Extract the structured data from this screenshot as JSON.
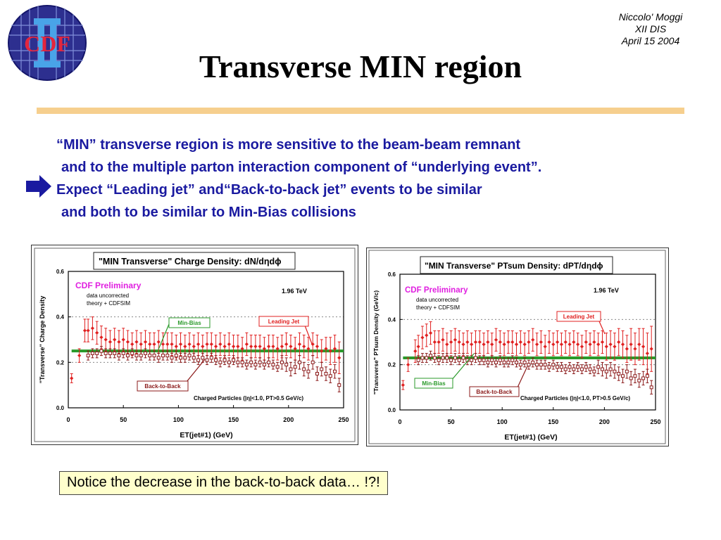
{
  "header": {
    "logo_text": "CDF",
    "author": "Niccolo' Moggi",
    "conference": "XII DIS",
    "date": "April 15 2004",
    "title": "Transverse MIN region"
  },
  "bullets": [
    "“MIN” transverse region is more sensitive to the beam-beam remnant",
    "and to the multiple parton interaction component of “underlying event”.",
    "Expect  “Leading jet” and“Back-to-back jet” events to be similar",
    "and both to be similar to Min-Bias collisions"
  ],
  "notice": "Notice the decrease in the back-to-back data… !?!",
  "colors": {
    "title_blue": "#1a1aa0",
    "leading": "#e02020",
    "back": "#8b1a1a",
    "minbias": "#2a9a2a",
    "cdf_pink": "#e020e0",
    "rule": "#f6cf8e",
    "notice_bg": "#ffffcc"
  },
  "chart_data": [
    {
      "type": "scatter",
      "title": "\"MIN Transverse\" Charge Density: dN/dηdϕ",
      "cdf_label": "CDF Preliminary",
      "note1": "data uncorrected",
      "note2": "theory + CDFSIM",
      "energy": "1.96 TeV",
      "xlabel": "ET(jet#1)   (GeV)",
      "ylabel": "\"Transverse\" Charge Density",
      "cuts": "Charged Particles (|η|<1.0, PT>0.5 GeV/c)",
      "xlim": [
        0,
        250
      ],
      "ylim": [
        0,
        0.6
      ],
      "xticks": [
        "0",
        "50",
        "100",
        "150",
        "200",
        "250"
      ],
      "yticks": [
        "0.0",
        "0.2",
        "0.4",
        "0.6"
      ],
      "minbias_level": 0.25,
      "labels": {
        "minbias": "Min-Bias",
        "leading": "Leading Jet",
        "back": "Back-to-Back"
      },
      "series": [
        {
          "name": "Leading Jet",
          "x": [
            3,
            10,
            15,
            18,
            22,
            26,
            30,
            34,
            38,
            42,
            46,
            50,
            54,
            58,
            62,
            66,
            70,
            74,
            78,
            82,
            86,
            90,
            94,
            98,
            102,
            106,
            110,
            114,
            118,
            122,
            126,
            130,
            134,
            138,
            142,
            146,
            150,
            154,
            158,
            162,
            166,
            170,
            174,
            178,
            182,
            186,
            190,
            194,
            198,
            202,
            206,
            210,
            214,
            218,
            222,
            226,
            230,
            234,
            238,
            242,
            246
          ],
          "y": [
            0.13,
            0.23,
            0.34,
            0.34,
            0.35,
            0.33,
            0.31,
            0.3,
            0.29,
            0.3,
            0.29,
            0.3,
            0.29,
            0.28,
            0.29,
            0.28,
            0.29,
            0.28,
            0.28,
            0.29,
            0.28,
            0.28,
            0.28,
            0.27,
            0.28,
            0.27,
            0.28,
            0.27,
            0.28,
            0.27,
            0.28,
            0.28,
            0.27,
            0.28,
            0.27,
            0.28,
            0.27,
            0.27,
            0.26,
            0.28,
            0.27,
            0.27,
            0.27,
            0.26,
            0.27,
            0.27,
            0.26,
            0.27,
            0.28,
            0.27,
            0.26,
            0.28,
            0.27,
            0.26,
            0.28,
            0.27,
            0.25,
            0.26,
            0.25,
            0.26,
            0.22
          ],
          "err": [
            0.02,
            0.03,
            0.05,
            0.05,
            0.05,
            0.05,
            0.05,
            0.05,
            0.05,
            0.05,
            0.05,
            0.05,
            0.05,
            0.05,
            0.05,
            0.05,
            0.05,
            0.05,
            0.05,
            0.05,
            0.05,
            0.05,
            0.05,
            0.05,
            0.05,
            0.05,
            0.05,
            0.05,
            0.05,
            0.05,
            0.05,
            0.05,
            0.05,
            0.05,
            0.05,
            0.05,
            0.05,
            0.05,
            0.05,
            0.05,
            0.05,
            0.05,
            0.05,
            0.05,
            0.05,
            0.05,
            0.05,
            0.05,
            0.05,
            0.05,
            0.05,
            0.05,
            0.05,
            0.05,
            0.05,
            0.05,
            0.05,
            0.05,
            0.06,
            0.06,
            0.07
          ]
        },
        {
          "name": "Back-to-Back",
          "x": [
            18,
            22,
            26,
            30,
            34,
            38,
            42,
            46,
            50,
            54,
            58,
            62,
            66,
            70,
            74,
            78,
            82,
            86,
            90,
            94,
            98,
            102,
            106,
            110,
            114,
            118,
            122,
            126,
            130,
            134,
            138,
            142,
            146,
            150,
            154,
            158,
            162,
            166,
            170,
            174,
            178,
            182,
            186,
            190,
            194,
            198,
            202,
            206,
            210,
            214,
            218,
            222,
            226,
            230,
            234,
            238,
            242,
            246
          ],
          "y": [
            0.23,
            0.24,
            0.24,
            0.25,
            0.24,
            0.24,
            0.24,
            0.23,
            0.24,
            0.23,
            0.24,
            0.23,
            0.23,
            0.24,
            0.23,
            0.23,
            0.22,
            0.23,
            0.23,
            0.22,
            0.23,
            0.22,
            0.22,
            0.23,
            0.22,
            0.21,
            0.22,
            0.21,
            0.22,
            0.21,
            0.2,
            0.21,
            0.2,
            0.21,
            0.2,
            0.2,
            0.19,
            0.2,
            0.19,
            0.2,
            0.19,
            0.2,
            0.19,
            0.18,
            0.2,
            0.19,
            0.17,
            0.18,
            0.2,
            0.17,
            0.16,
            0.2,
            0.15,
            0.17,
            0.15,
            0.14,
            0.16,
            0.1
          ],
          "err": [
            0.02,
            0.02,
            0.02,
            0.02,
            0.02,
            0.02,
            0.02,
            0.02,
            0.02,
            0.02,
            0.02,
            0.02,
            0.02,
            0.02,
            0.02,
            0.02,
            0.02,
            0.02,
            0.02,
            0.02,
            0.02,
            0.02,
            0.02,
            0.02,
            0.02,
            0.02,
            0.02,
            0.02,
            0.02,
            0.02,
            0.02,
            0.02,
            0.02,
            0.02,
            0.02,
            0.02,
            0.02,
            0.02,
            0.02,
            0.02,
            0.02,
            0.02,
            0.02,
            0.02,
            0.03,
            0.03,
            0.03,
            0.03,
            0.03,
            0.03,
            0.03,
            0.03,
            0.03,
            0.03,
            0.03,
            0.03,
            0.03,
            0.03
          ]
        }
      ]
    },
    {
      "type": "scatter",
      "title": "\"MIN Transverse\" PTsum Density: dPT/dηdϕ",
      "cdf_label": "CDF Preliminary",
      "note1": "data uncorrected",
      "note2": "theory + CDFSIM",
      "energy": "1.96 TeV",
      "xlabel": "ET(jet#1)   (GeV)",
      "ylabel": "\"Transverse\" PTsum Density (GeV/c)",
      "cuts": "Charged Particles (|η|<1.0, PT>0.5 GeV/c)",
      "xlim": [
        0,
        250
      ],
      "ylim": [
        0,
        0.6
      ],
      "xticks": [
        "0",
        "50",
        "100",
        "150",
        "200",
        "250"
      ],
      "yticks": [
        "0.0",
        "0.2",
        "0.4",
        "0.6"
      ],
      "minbias_level": 0.23,
      "labels": {
        "minbias": "Min-Bias",
        "leading": "Leading Jet",
        "back": "Back-to-Back"
      },
      "series": [
        {
          "name": "Leading Jet",
          "x": [
            3,
            8,
            15,
            18,
            22,
            26,
            30,
            34,
            38,
            42,
            46,
            50,
            54,
            58,
            62,
            66,
            70,
            74,
            78,
            82,
            86,
            90,
            94,
            98,
            102,
            106,
            110,
            114,
            118,
            122,
            126,
            130,
            134,
            138,
            142,
            146,
            150,
            154,
            158,
            162,
            166,
            170,
            174,
            178,
            182,
            186,
            190,
            194,
            198,
            202,
            206,
            210,
            214,
            218,
            222,
            226,
            230,
            234,
            238,
            242,
            246
          ],
          "y": [
            0.11,
            0.2,
            0.26,
            0.28,
            0.32,
            0.33,
            0.34,
            0.3,
            0.3,
            0.31,
            0.29,
            0.3,
            0.31,
            0.3,
            0.29,
            0.3,
            0.29,
            0.3,
            0.3,
            0.29,
            0.3,
            0.29,
            0.31,
            0.3,
            0.29,
            0.3,
            0.3,
            0.29,
            0.3,
            0.29,
            0.3,
            0.31,
            0.29,
            0.3,
            0.28,
            0.3,
            0.29,
            0.3,
            0.29,
            0.3,
            0.29,
            0.3,
            0.29,
            0.28,
            0.3,
            0.29,
            0.3,
            0.29,
            0.3,
            0.28,
            0.29,
            0.28,
            0.3,
            0.29,
            0.27,
            0.29,
            0.27,
            0.29,
            0.28,
            0.25,
            0.27
          ],
          "err": [
            0.02,
            0.03,
            0.05,
            0.05,
            0.05,
            0.05,
            0.05,
            0.05,
            0.05,
            0.05,
            0.05,
            0.05,
            0.05,
            0.05,
            0.05,
            0.05,
            0.05,
            0.05,
            0.05,
            0.05,
            0.05,
            0.05,
            0.05,
            0.05,
            0.05,
            0.05,
            0.05,
            0.05,
            0.05,
            0.05,
            0.05,
            0.05,
            0.05,
            0.05,
            0.05,
            0.05,
            0.05,
            0.05,
            0.05,
            0.05,
            0.05,
            0.05,
            0.05,
            0.05,
            0.05,
            0.05,
            0.05,
            0.05,
            0.05,
            0.06,
            0.06,
            0.06,
            0.06,
            0.06,
            0.06,
            0.07,
            0.07,
            0.07,
            0.08,
            0.09,
            0.1
          ]
        },
        {
          "name": "Back-to-Back",
          "x": [
            18,
            22,
            26,
            30,
            34,
            38,
            42,
            46,
            50,
            54,
            58,
            62,
            66,
            70,
            74,
            78,
            82,
            86,
            90,
            94,
            98,
            102,
            106,
            110,
            114,
            118,
            122,
            126,
            130,
            134,
            138,
            142,
            146,
            150,
            154,
            158,
            162,
            166,
            170,
            174,
            178,
            182,
            186,
            190,
            194,
            198,
            202,
            206,
            210,
            214,
            218,
            222,
            226,
            230,
            234,
            238,
            242,
            246
          ],
          "y": [
            0.22,
            0.23,
            0.23,
            0.24,
            0.23,
            0.22,
            0.23,
            0.23,
            0.22,
            0.23,
            0.22,
            0.23,
            0.22,
            0.22,
            0.23,
            0.22,
            0.22,
            0.21,
            0.22,
            0.21,
            0.22,
            0.21,
            0.21,
            0.22,
            0.21,
            0.2,
            0.21,
            0.2,
            0.21,
            0.2,
            0.2,
            0.2,
            0.19,
            0.2,
            0.19,
            0.19,
            0.18,
            0.19,
            0.18,
            0.19,
            0.18,
            0.19,
            0.18,
            0.17,
            0.19,
            0.18,
            0.17,
            0.18,
            0.17,
            0.16,
            0.15,
            0.17,
            0.14,
            0.15,
            0.13,
            0.14,
            0.15,
            0.1
          ],
          "err": [
            0.02,
            0.02,
            0.02,
            0.02,
            0.02,
            0.02,
            0.02,
            0.02,
            0.02,
            0.02,
            0.02,
            0.02,
            0.02,
            0.02,
            0.02,
            0.02,
            0.02,
            0.02,
            0.02,
            0.02,
            0.02,
            0.02,
            0.02,
            0.02,
            0.02,
            0.02,
            0.02,
            0.02,
            0.02,
            0.02,
            0.02,
            0.02,
            0.02,
            0.02,
            0.02,
            0.02,
            0.02,
            0.02,
            0.02,
            0.02,
            0.02,
            0.02,
            0.02,
            0.02,
            0.03,
            0.03,
            0.03,
            0.03,
            0.03,
            0.03,
            0.03,
            0.03,
            0.03,
            0.03,
            0.03,
            0.03,
            0.03,
            0.03
          ]
        }
      ]
    }
  ]
}
